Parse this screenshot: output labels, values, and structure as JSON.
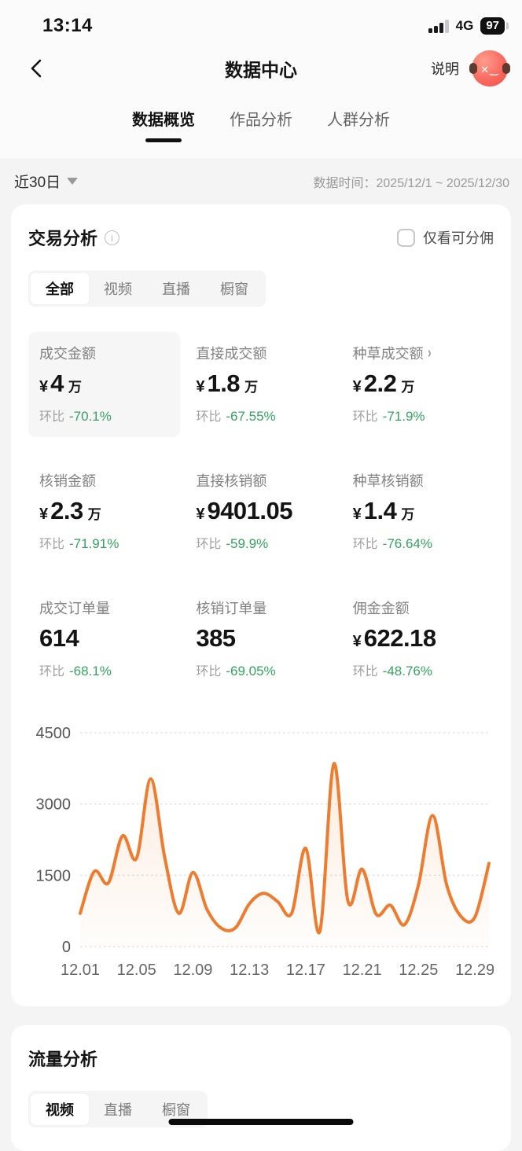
{
  "status_bar": {
    "time": "13:14",
    "network": "4G",
    "battery": "97"
  },
  "header": {
    "title": "数据中心",
    "help_label": "说明"
  },
  "top_tabs": [
    {
      "label": "数据概览",
      "active": true
    },
    {
      "label": "作品分析",
      "active": false
    },
    {
      "label": "人群分析",
      "active": false
    }
  ],
  "filter": {
    "range_label": "近30日",
    "date_label": "数据时间：",
    "date_value": "2025/12/1 ~ 2025/12/30"
  },
  "trade_card": {
    "title": "交易分析",
    "checkbox_label": "仅看可分佣",
    "checkbox_checked": false,
    "segments": [
      {
        "label": "全部",
        "active": true
      },
      {
        "label": "视频",
        "active": false
      },
      {
        "label": "直播",
        "active": false
      },
      {
        "label": "橱窗",
        "active": false
      }
    ],
    "metrics": [
      {
        "label": "成交金额",
        "prefix": "¥",
        "value": "4",
        "suffix": "万",
        "compare": "环比",
        "change": "-70.1%",
        "highlight": true
      },
      {
        "label": "直接成交额",
        "prefix": "¥",
        "value": "1.8",
        "suffix": "万",
        "compare": "环比",
        "change": "-67.55%"
      },
      {
        "label": "种草成交额",
        "prefix": "¥",
        "value": "2.2",
        "suffix": "万",
        "compare": "环比",
        "change": "-71.9%",
        "has_arrow": true
      },
      {
        "label": "核销金额",
        "prefix": "¥",
        "value": "2.3",
        "suffix": "万",
        "compare": "环比",
        "change": "-71.91%"
      },
      {
        "label": "直接核销额",
        "prefix": "¥",
        "value": "9401.05",
        "suffix": "",
        "compare": "环比",
        "change": "-59.9%"
      },
      {
        "label": "种草核销额",
        "prefix": "¥",
        "value": "1.4",
        "suffix": "万",
        "compare": "环比",
        "change": "-76.64%"
      },
      {
        "label": "成交订单量",
        "prefix": "",
        "value": "614",
        "suffix": "",
        "compare": "环比",
        "change": "-68.1%"
      },
      {
        "label": "核销订单量",
        "prefix": "",
        "value": "385",
        "suffix": "",
        "compare": "环比",
        "change": "-69.05%"
      },
      {
        "label": "佣金金额",
        "prefix": "¥",
        "value": "622.18",
        "suffix": "",
        "compare": "环比",
        "change": "-48.76%"
      }
    ]
  },
  "chart_data": {
    "type": "area",
    "title": "",
    "x": [
      "12.01",
      "12.02",
      "12.03",
      "12.04",
      "12.05",
      "12.06",
      "12.07",
      "12.08",
      "12.09",
      "12.10",
      "12.11",
      "12.12",
      "12.13",
      "12.14",
      "12.15",
      "12.16",
      "12.17",
      "12.18",
      "12.19",
      "12.20",
      "12.21",
      "12.22",
      "12.23",
      "12.24",
      "12.25",
      "12.26",
      "12.27",
      "12.28",
      "12.29",
      "12.30"
    ],
    "values": [
      700,
      1580,
      1340,
      2330,
      1860,
      3530,
      1870,
      700,
      1560,
      780,
      390,
      390,
      900,
      1120,
      950,
      700,
      2070,
      320,
      3850,
      950,
      1630,
      680,
      870,
      460,
      1300,
      2760,
      1300,
      640,
      620,
      1750
    ],
    "x_tick_labels": [
      "12.01",
      "12.05",
      "12.09",
      "12.13",
      "12.17",
      "12.21",
      "12.25",
      "12.29"
    ],
    "x_tick_indices": [
      0,
      4,
      8,
      12,
      16,
      20,
      24,
      28
    ],
    "yticks": [
      0,
      1500,
      3000,
      4500
    ],
    "ylim": [
      0,
      4500
    ],
    "grid": "horizontal-dotted",
    "legend": "none",
    "line_color": "#ee7b2e",
    "area_color": "#f08a3c"
  },
  "traffic_card": {
    "title": "流量分析",
    "segments": [
      {
        "label": "视频",
        "active": true
      },
      {
        "label": "直播",
        "active": false
      },
      {
        "label": "橱窗",
        "active": false
      }
    ]
  },
  "icons": {
    "chevron_right": "›",
    "info": "i"
  },
  "colors": {
    "accent_orange": "#ee7b2e",
    "change_green": "#33a35f",
    "page_bg": "#f4f4f5",
    "card_bg": "#ffffff",
    "text_primary": "#141414",
    "text_secondary": "#828282",
    "grid_line": "#e3e3e4"
  }
}
